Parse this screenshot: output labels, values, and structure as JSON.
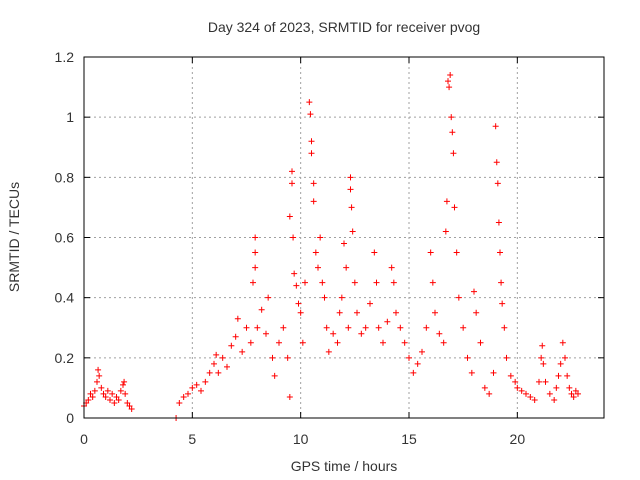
{
  "chart_data": {
    "type": "scatter",
    "title": "Day 324 of 2023, SRMTID for receiver pvog",
    "xlabel": "GPS time / hours",
    "ylabel": "SRMTID / TECUs",
    "xlim": [
      0,
      24
    ],
    "ylim": [
      0,
      1.2
    ],
    "x_ticks": [
      0,
      5,
      10,
      15,
      20
    ],
    "x_tick_labels": [
      "0",
      "5",
      "10",
      "15",
      "20"
    ],
    "y_ticks": [
      0,
      0.2,
      0.4,
      0.6,
      0.8,
      1.0,
      1.2
    ],
    "y_tick_labels": [
      "0",
      "0.2",
      "0.4",
      "0.6",
      "0.8",
      "1",
      "1.2"
    ],
    "grid": true,
    "marker": "plus",
    "color": "#ff0000",
    "series": [
      {
        "name": "SRMTID",
        "points": [
          [
            0.0,
            0.04
          ],
          [
            0.1,
            0.05
          ],
          [
            0.2,
            0.06
          ],
          [
            0.3,
            0.08
          ],
          [
            0.4,
            0.07
          ],
          [
            0.5,
            0.09
          ],
          [
            0.6,
            0.12
          ],
          [
            0.65,
            0.16
          ],
          [
            0.7,
            0.14
          ],
          [
            0.8,
            0.1
          ],
          [
            0.9,
            0.08
          ],
          [
            1.0,
            0.07
          ],
          [
            1.1,
            0.09
          ],
          [
            1.2,
            0.06
          ],
          [
            1.3,
            0.08
          ],
          [
            1.4,
            0.05
          ],
          [
            1.5,
            0.07
          ],
          [
            1.6,
            0.06
          ],
          [
            1.7,
            0.09
          ],
          [
            1.8,
            0.11
          ],
          [
            1.85,
            0.12
          ],
          [
            1.9,
            0.08
          ],
          [
            2.0,
            0.05
          ],
          [
            2.1,
            0.04
          ],
          [
            2.2,
            0.03
          ],
          [
            4.25,
            0.0
          ],
          [
            4.4,
            0.05
          ],
          [
            4.6,
            0.07
          ],
          [
            4.8,
            0.08
          ],
          [
            5.0,
            0.1
          ],
          [
            5.2,
            0.11
          ],
          [
            5.4,
            0.09
          ],
          [
            5.6,
            0.12
          ],
          [
            5.8,
            0.15
          ],
          [
            6.0,
            0.18
          ],
          [
            6.1,
            0.21
          ],
          [
            6.2,
            0.15
          ],
          [
            6.4,
            0.2
          ],
          [
            6.6,
            0.17
          ],
          [
            6.8,
            0.24
          ],
          [
            7.0,
            0.27
          ],
          [
            7.1,
            0.33
          ],
          [
            7.3,
            0.22
          ],
          [
            7.5,
            0.3
          ],
          [
            7.7,
            0.25
          ],
          [
            7.8,
            0.45
          ],
          [
            7.9,
            0.6
          ],
          [
            7.9,
            0.55
          ],
          [
            7.9,
            0.5
          ],
          [
            8.0,
            0.3
          ],
          [
            8.2,
            0.36
          ],
          [
            8.4,
            0.28
          ],
          [
            8.5,
            0.4
          ],
          [
            8.7,
            0.2
          ],
          [
            8.8,
            0.14
          ],
          [
            9.0,
            0.25
          ],
          [
            9.2,
            0.3
          ],
          [
            9.4,
            0.2
          ],
          [
            9.5,
            0.07
          ],
          [
            9.5,
            0.67
          ],
          [
            9.6,
            0.78
          ],
          [
            9.6,
            0.82
          ],
          [
            9.65,
            0.6
          ],
          [
            9.7,
            0.48
          ],
          [
            9.8,
            0.44
          ],
          [
            9.9,
            0.38
          ],
          [
            10.0,
            0.35
          ],
          [
            10.1,
            0.25
          ],
          [
            10.2,
            0.45
          ],
          [
            10.4,
            1.05
          ],
          [
            10.45,
            1.01
          ],
          [
            10.5,
            0.92
          ],
          [
            10.5,
            0.88
          ],
          [
            10.6,
            0.78
          ],
          [
            10.6,
            0.72
          ],
          [
            10.7,
            0.55
          ],
          [
            10.8,
            0.5
          ],
          [
            10.9,
            0.6
          ],
          [
            11.0,
            0.45
          ],
          [
            11.1,
            0.4
          ],
          [
            11.2,
            0.3
          ],
          [
            11.3,
            0.22
          ],
          [
            11.5,
            0.28
          ],
          [
            11.7,
            0.25
          ],
          [
            11.8,
            0.35
          ],
          [
            11.9,
            0.4
          ],
          [
            12.0,
            0.58
          ],
          [
            12.1,
            0.5
          ],
          [
            12.2,
            0.3
          ],
          [
            12.3,
            0.8
          ],
          [
            12.3,
            0.76
          ],
          [
            12.35,
            0.7
          ],
          [
            12.4,
            0.62
          ],
          [
            12.5,
            0.45
          ],
          [
            12.6,
            0.35
          ],
          [
            12.8,
            0.28
          ],
          [
            13.0,
            0.3
          ],
          [
            13.2,
            0.38
          ],
          [
            13.4,
            0.55
          ],
          [
            13.5,
            0.45
          ],
          [
            13.6,
            0.3
          ],
          [
            13.8,
            0.25
          ],
          [
            14.0,
            0.32
          ],
          [
            14.2,
            0.5
          ],
          [
            14.3,
            0.45
          ],
          [
            14.4,
            0.35
          ],
          [
            14.6,
            0.3
          ],
          [
            14.8,
            0.25
          ],
          [
            15.0,
            0.2
          ],
          [
            15.2,
            0.15
          ],
          [
            15.4,
            0.18
          ],
          [
            15.6,
            0.22
          ],
          [
            15.8,
            0.3
          ],
          [
            16.0,
            0.55
          ],
          [
            16.1,
            0.45
          ],
          [
            16.2,
            0.35
          ],
          [
            16.4,
            0.28
          ],
          [
            16.6,
            0.25
          ],
          [
            16.7,
            0.62
          ],
          [
            16.75,
            0.72
          ],
          [
            16.8,
            1.12
          ],
          [
            16.85,
            1.1
          ],
          [
            16.9,
            1.14
          ],
          [
            16.95,
            1.0
          ],
          [
            17.0,
            0.95
          ],
          [
            17.05,
            0.88
          ],
          [
            17.1,
            0.7
          ],
          [
            17.2,
            0.55
          ],
          [
            17.3,
            0.4
          ],
          [
            17.5,
            0.3
          ],
          [
            17.7,
            0.2
          ],
          [
            17.9,
            0.15
          ],
          [
            18.0,
            0.42
          ],
          [
            18.1,
            0.35
          ],
          [
            18.3,
            0.25
          ],
          [
            18.5,
            0.1
          ],
          [
            18.7,
            0.08
          ],
          [
            18.9,
            0.15
          ],
          [
            19.0,
            0.97
          ],
          [
            19.05,
            0.85
          ],
          [
            19.1,
            0.78
          ],
          [
            19.15,
            0.65
          ],
          [
            19.2,
            0.55
          ],
          [
            19.25,
            0.45
          ],
          [
            19.3,
            0.38
          ],
          [
            19.4,
            0.3
          ],
          [
            19.5,
            0.2
          ],
          [
            19.7,
            0.14
          ],
          [
            19.9,
            0.12
          ],
          [
            20.0,
            0.1
          ],
          [
            20.2,
            0.09
          ],
          [
            20.4,
            0.08
          ],
          [
            20.6,
            0.07
          ],
          [
            20.8,
            0.06
          ],
          [
            21.0,
            0.12
          ],
          [
            21.1,
            0.2
          ],
          [
            21.15,
            0.24
          ],
          [
            21.2,
            0.18
          ],
          [
            21.3,
            0.12
          ],
          [
            21.5,
            0.08
          ],
          [
            21.7,
            0.06
          ],
          [
            21.8,
            0.1
          ],
          [
            21.9,
            0.14
          ],
          [
            22.0,
            0.18
          ],
          [
            22.1,
            0.25
          ],
          [
            22.2,
            0.2
          ],
          [
            22.3,
            0.14
          ],
          [
            22.4,
            0.1
          ],
          [
            22.5,
            0.08
          ],
          [
            22.6,
            0.07
          ],
          [
            22.7,
            0.09
          ],
          [
            22.8,
            0.08
          ]
        ]
      }
    ]
  }
}
